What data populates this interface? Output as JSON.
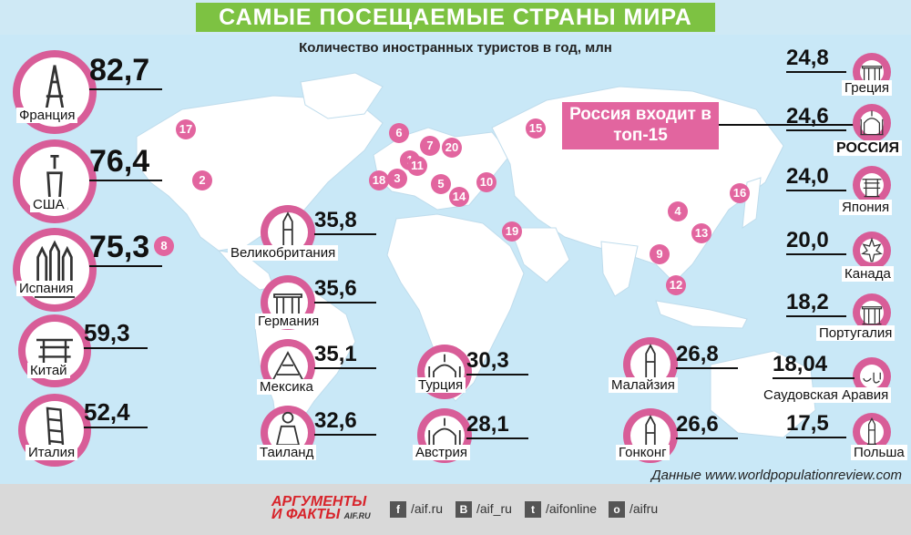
{
  "title": "САМЫЕ ПОСЕЩАЕМЫЕ СТРАНЫ МИРА",
  "subtitle": "Количество иностранных туристов в год, млн",
  "source": "Данные www.worldpopulationreview.com",
  "russia_callout": "Россия входит в топ-15",
  "countries": [
    {
      "name": "Франция",
      "value": "82,7",
      "icon": "eiffel-tower-icon"
    },
    {
      "name": "США",
      "value": "76,4",
      "icon": "statue-of-liberty-icon"
    },
    {
      "name": "Испания",
      "value": "75,3",
      "icon": "sagrada-familia-icon"
    },
    {
      "name": "Китай",
      "value": "59,3",
      "icon": "pagoda-icon"
    },
    {
      "name": "Италия",
      "value": "52,4",
      "icon": "leaning-tower-icon"
    },
    {
      "name": "Великобритания",
      "value": "35,8",
      "icon": "big-ben-icon"
    },
    {
      "name": "Германия",
      "value": "35,6",
      "icon": "brandenburg-gate-icon"
    },
    {
      "name": "Мексика",
      "value": "35,1",
      "icon": "pyramid-icon"
    },
    {
      "name": "Таиланд",
      "value": "32,6",
      "icon": "buddha-icon"
    },
    {
      "name": "Турция",
      "value": "30,3",
      "icon": "mosque-icon"
    },
    {
      "name": "Австрия",
      "value": "28,1",
      "icon": "church-icon"
    },
    {
      "name": "Малайзия",
      "value": "26,8",
      "icon": "twin-towers-icon"
    },
    {
      "name": "Гонконг",
      "value": "26,6",
      "icon": "skyscraper-icon"
    },
    {
      "name": "Греция",
      "value": "24,8",
      "icon": "greek-column-icon"
    },
    {
      "name": "РОССИЯ",
      "value": "24,6",
      "icon": "kremlin-cathedral-icon"
    },
    {
      "name": "Япония",
      "value": "24,0",
      "icon": "torii-gate-icon"
    },
    {
      "name": "Канада",
      "value": "20,0",
      "icon": "maple-leaf-icon"
    },
    {
      "name": "Португалия",
      "value": "18,2",
      "icon": "castle-icon"
    },
    {
      "name": "Саудовская Аравия",
      "value": "18,04",
      "icon": "riyal-icon"
    },
    {
      "name": "Польша",
      "value": "17,5",
      "icon": "palace-tower-icon"
    }
  ],
  "markers": [
    "1",
    "2",
    "3",
    "4",
    "5",
    "6",
    "7",
    "8",
    "9",
    "10",
    "11",
    "12",
    "13",
    "14",
    "15",
    "16",
    "17",
    "18",
    "19",
    "20"
  ],
  "footer": {
    "logo_line1": "АРГУМЕНТЫ",
    "logo_line2": "И ФАКТЫ",
    "logo_site": "AIF.RU",
    "social": [
      {
        "icon": "facebook-icon",
        "glyph": "f",
        "handle": "/aif.ru"
      },
      {
        "icon": "vk-icon",
        "glyph": "B",
        "handle": "/aif_ru"
      },
      {
        "icon": "twitter-icon",
        "glyph": "t",
        "handle": "/aifonline"
      },
      {
        "icon": "odnoklassniki-icon",
        "glyph": "o",
        "handle": "/aifru"
      }
    ]
  },
  "colors": {
    "accent": "#7dc242",
    "pink": "#e2659f",
    "ring": "#d85d98",
    "ocean": "#c9e8f7",
    "land": "#ffffff"
  }
}
